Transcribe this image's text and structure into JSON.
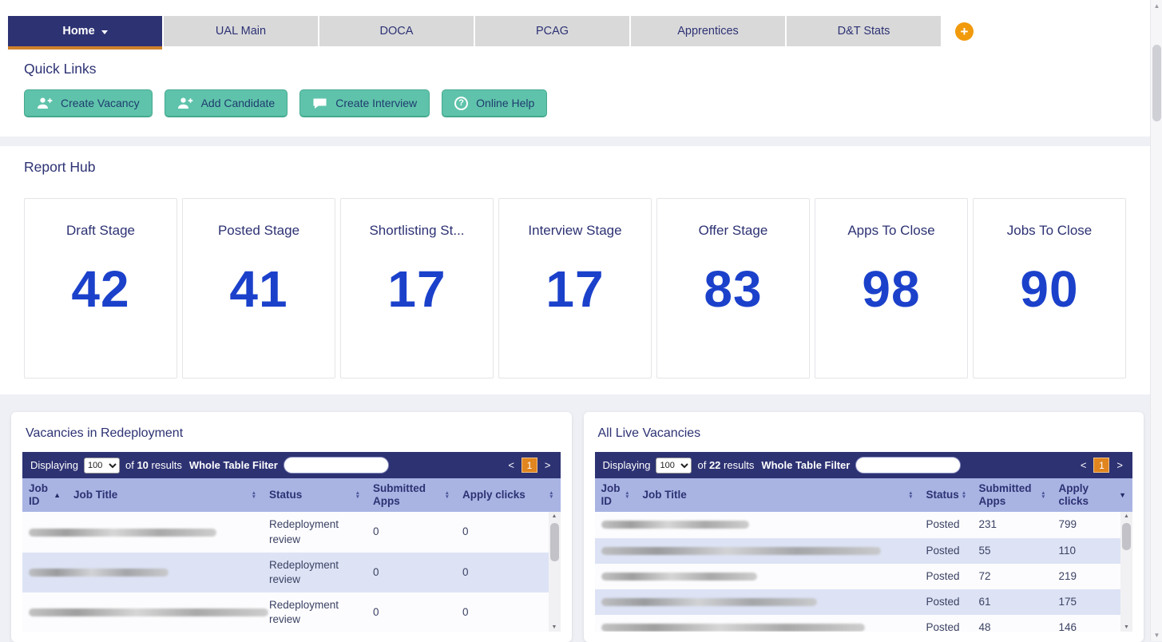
{
  "colors": {
    "navy": "#2d3273",
    "orange": "#e0851f",
    "number_blue": "#1b41cb",
    "teal": "#5fc3ab",
    "header_row": "#a9b4e3"
  },
  "tab_bar": {
    "tabs": [
      {
        "label": "Home",
        "active": true,
        "has_caret": true
      },
      {
        "label": "UAL Main",
        "active": false
      },
      {
        "label": "DOCA",
        "active": false
      },
      {
        "label": "PCAG",
        "active": false
      },
      {
        "label": "Apprentices",
        "active": false
      },
      {
        "label": "D&T Stats",
        "active": false
      }
    ],
    "add_tab_label": "+"
  },
  "quick_links": {
    "title": "Quick Links",
    "buttons": [
      {
        "label": "Create Vacancy",
        "icon": "create-vacancy-icon"
      },
      {
        "label": "Add Candidate",
        "icon": "add-candidate-icon"
      },
      {
        "label": "Create Interview",
        "icon": "create-interview-icon"
      },
      {
        "label": "Online Help",
        "icon": "online-help-icon"
      }
    ]
  },
  "report_hub": {
    "title": "Report Hub",
    "cards": [
      {
        "label": "Draft Stage",
        "value": "42"
      },
      {
        "label": "Posted Stage",
        "value": "41"
      },
      {
        "label": "Shortlisting St...",
        "value": "17"
      },
      {
        "label": "Interview Stage",
        "value": "17"
      },
      {
        "label": "Offer Stage",
        "value": "83"
      },
      {
        "label": "Apps To Close",
        "value": "98"
      },
      {
        "label": "Jobs To Close",
        "value": "90"
      }
    ]
  },
  "tables": [
    {
      "title": "Vacancies in Redeployment",
      "toolbar": {
        "displaying": "Displaying",
        "page_size": "100",
        "of": "of",
        "count": "10",
        "results": "results",
        "filter_label": "Whole Table Filter",
        "filter_value": "",
        "prev": "<",
        "page": "1",
        "next": ">"
      },
      "columns": [
        {
          "label": "Job ID",
          "sort": "asc"
        },
        {
          "label": "Job Title",
          "sort": "none"
        },
        {
          "label": "Status",
          "sort": "none"
        },
        {
          "label": "Submitted Apps",
          "sort": "none"
        },
        {
          "label": "Apply clicks",
          "sort": "none"
        }
      ],
      "rows": [
        {
          "job_title_redacted": true,
          "redacted_width": 235,
          "status": "Redeployment review",
          "submitted_apps": "0",
          "apply_clicks": "0"
        },
        {
          "job_title_redacted": true,
          "redacted_width": 175,
          "status": "Redeployment review",
          "submitted_apps": "0",
          "apply_clicks": "0"
        },
        {
          "job_title_redacted": true,
          "redacted_width": 300,
          "status": "Redeployment review",
          "submitted_apps": "0",
          "apply_clicks": "0"
        }
      ]
    },
    {
      "title": "All Live Vacancies",
      "toolbar": {
        "displaying": "Displaying",
        "page_size": "100",
        "of": "of",
        "count": "22",
        "results": "results",
        "filter_label": "Whole Table Filter",
        "filter_value": "",
        "prev": "<",
        "page": "1",
        "next": ">"
      },
      "columns": [
        {
          "label": "Job ID",
          "sort": "none"
        },
        {
          "label": "Job Title",
          "sort": "none"
        },
        {
          "label": "Status",
          "sort": "none"
        },
        {
          "label": "Submitted Apps",
          "sort": "none"
        },
        {
          "label": "Apply clicks",
          "sort": "desc"
        }
      ],
      "rows": [
        {
          "job_title_redacted": true,
          "redacted_width": 185,
          "status": "Posted",
          "submitted_apps": "231",
          "apply_clicks": "799"
        },
        {
          "job_title_redacted": true,
          "redacted_width": 350,
          "status": "Posted",
          "submitted_apps": "55",
          "apply_clicks": "110"
        },
        {
          "job_title_redacted": true,
          "redacted_width": 195,
          "status": "Posted",
          "submitted_apps": "72",
          "apply_clicks": "219"
        },
        {
          "job_title_redacted": true,
          "redacted_width": 270,
          "status": "Posted",
          "submitted_apps": "61",
          "apply_clicks": "175"
        },
        {
          "job_title_redacted": true,
          "redacted_width": 330,
          "status": "Posted",
          "submitted_apps": "48",
          "apply_clicks": "146"
        }
      ]
    }
  ]
}
